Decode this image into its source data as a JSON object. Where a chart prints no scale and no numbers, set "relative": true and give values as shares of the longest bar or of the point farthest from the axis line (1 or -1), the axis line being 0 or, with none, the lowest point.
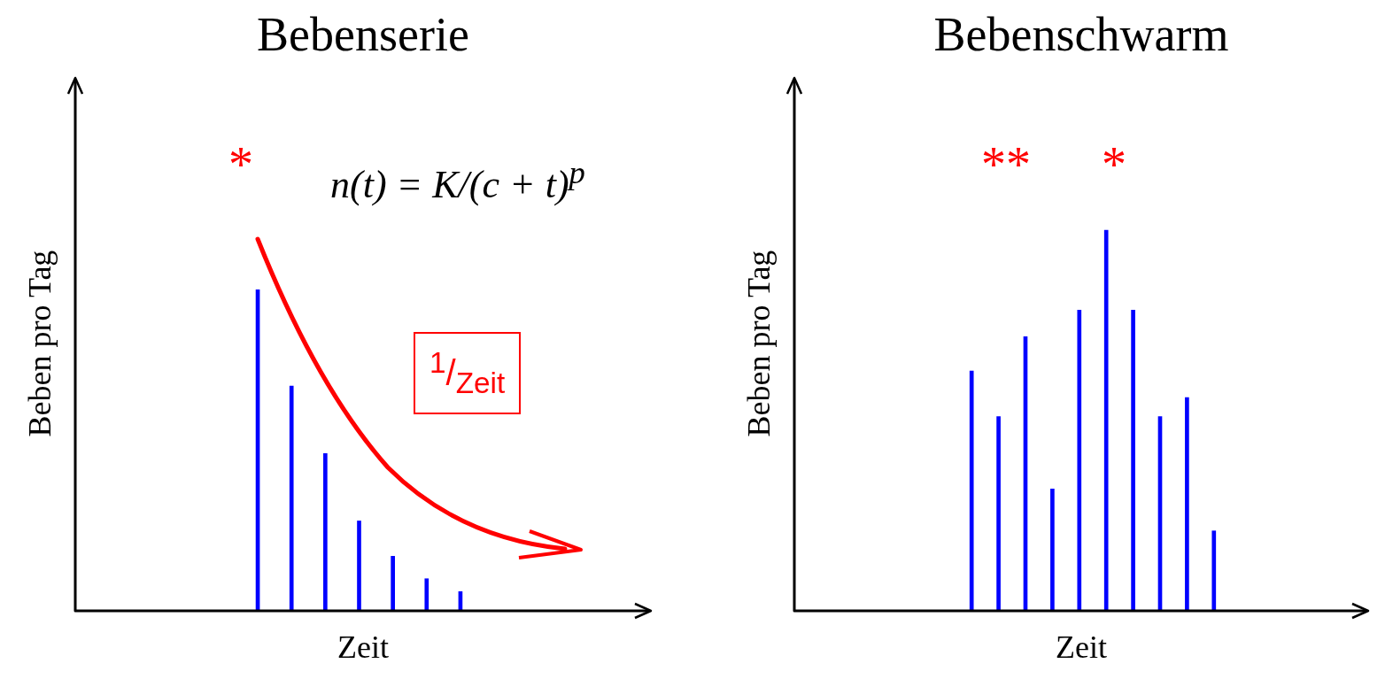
{
  "chart_data": [
    {
      "type": "bar",
      "title": "Bebenserie",
      "xlabel": "Zeit",
      "ylabel": "Beben pro Tag",
      "relative": true,
      "color": "#0000ff",
      "categories": [
        null,
        null,
        null,
        null,
        null,
        null,
        null
      ],
      "values": [
        1,
        0.7,
        0.49,
        0.28,
        0.17,
        0.1,
        0.06
      ],
      "annotations": [
        "*",
        "n(t) = K/(c + t)$^{p}$",
        "$^{1}$/$_{Zeit}$"
      ]
    },
    {
      "type": "bar",
      "title": "Bebenschwarm",
      "xlabel": "Zeit",
      "ylabel": "Beben pro Tag",
      "relative": true,
      "color": "#0000ff",
      "categories": [
        null,
        null,
        null,
        null,
        null,
        null,
        null,
        null,
        null,
        null
      ],
      "values": [
        0.63,
        0.51,
        0.72,
        0.32,
        0.79,
        1,
        0.79,
        0.51,
        0.56,
        0.21
      ],
      "annotations": [
        "**",
        "*"
      ]
    }
  ]
}
